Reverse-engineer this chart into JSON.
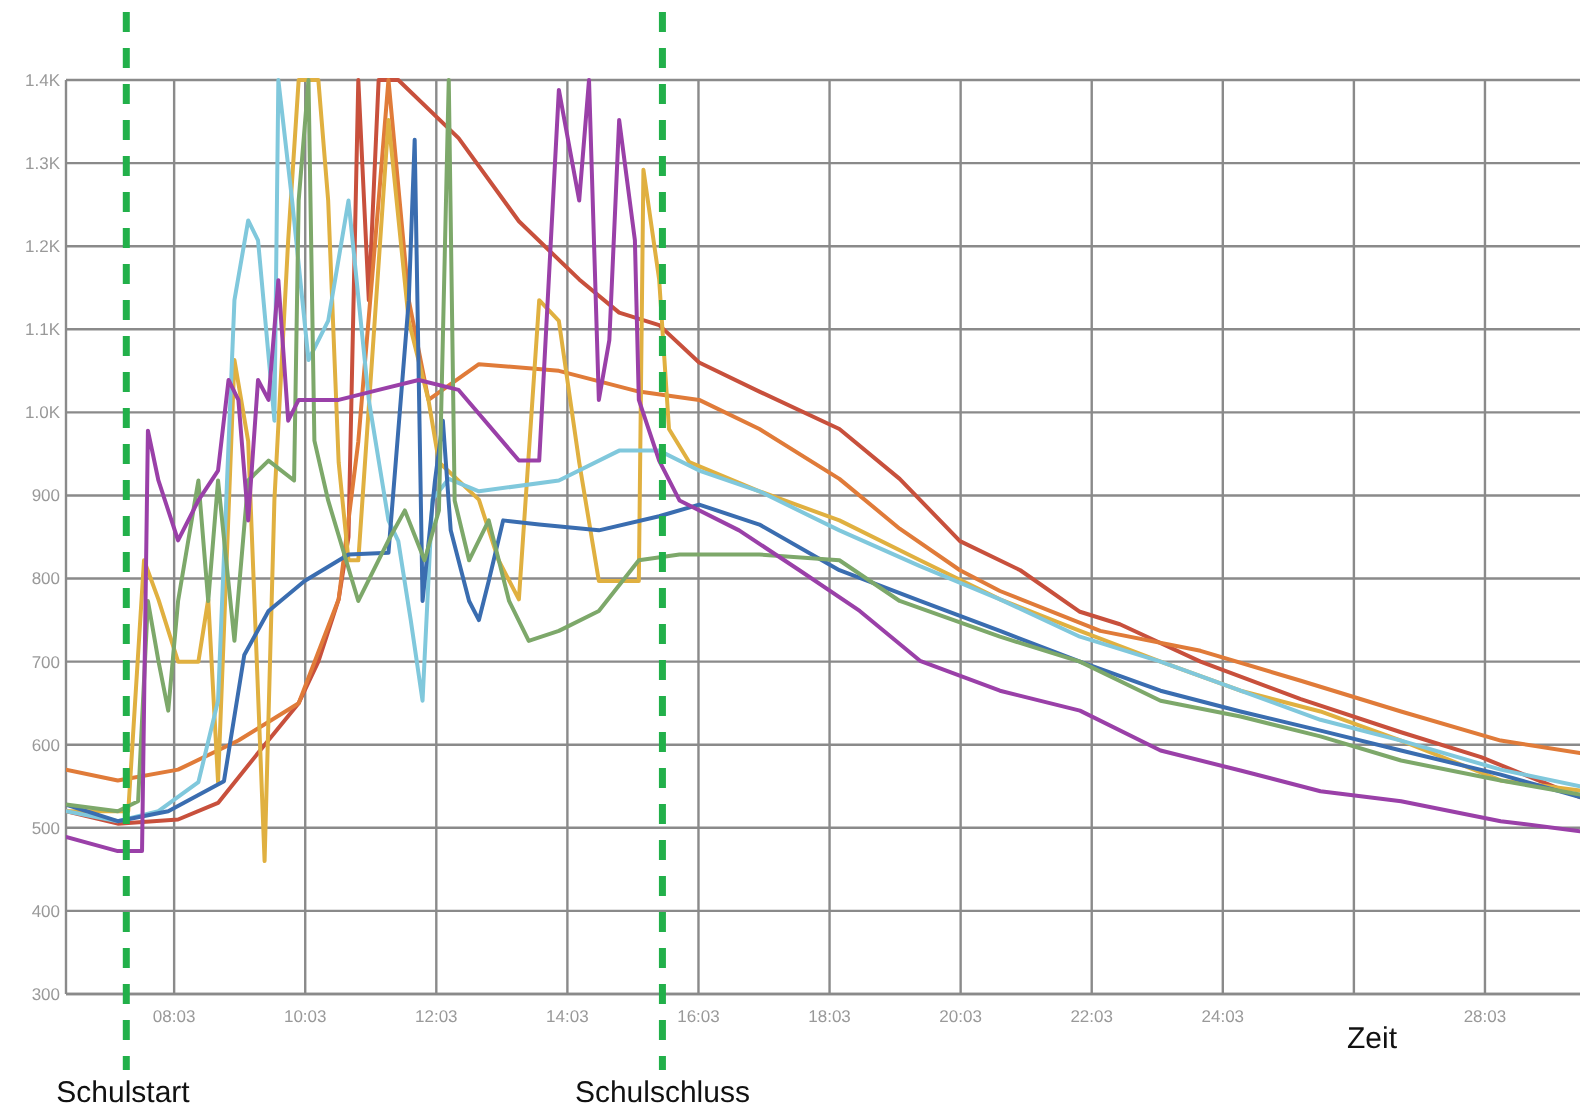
{
  "chart_data": {
    "type": "line",
    "xlabel": "Zeit",
    "xlim": [
      6.4,
      29.5
    ],
    "ylim": [
      300,
      1400
    ],
    "xticks": [
      {
        "value": 8.05,
        "label": "08:03"
      },
      {
        "value": 10.05,
        "label": "10:03"
      },
      {
        "value": 12.05,
        "label": "12:03"
      },
      {
        "value": 14.05,
        "label": "14:03"
      },
      {
        "value": 16.05,
        "label": "16:03"
      },
      {
        "value": 18.05,
        "label": "18:03"
      },
      {
        "value": 20.05,
        "label": "20:03"
      },
      {
        "value": 22.05,
        "label": "22:03"
      },
      {
        "value": 24.05,
        "label": "24:03"
      },
      {
        "value": 26.05,
        "label": null
      },
      {
        "value": 28.05,
        "label": "28:03"
      }
    ],
    "yticks": [
      300,
      400,
      500,
      600,
      700,
      800,
      900,
      {
        "value": 1000,
        "label": "1.0K"
      },
      {
        "value": 1100,
        "label": "1.1K"
      },
      {
        "value": 1200,
        "label": "1.2K"
      },
      {
        "value": 1300,
        "label": "1.3K"
      },
      {
        "value": 1400,
        "label": "1.4K"
      }
    ],
    "grid": true,
    "marker": "none",
    "line_style": "solid",
    "ref_lines": [
      {
        "axis": "x",
        "value": 7.32,
        "label": "Schulstart",
        "color": "#22b04a",
        "line_style": "dashed"
      },
      {
        "axis": "x",
        "value": 15.5,
        "label": "Schulschluss",
        "color": "#22b04a",
        "line_style": "dashed"
      }
    ],
    "series": [
      {
        "color": "#c8503c",
        "x": [
          6.4,
          7.19,
          8.11,
          8.72,
          9.33,
          9.95,
          10.25,
          10.56,
          10.71,
          10.86,
          11.02,
          11.17,
          11.47,
          12.39,
          13.31,
          14.23,
          14.84,
          15.45,
          16.06,
          16.98,
          18.2,
          19.12,
          20.04,
          20.96,
          21.87,
          22.48,
          23.71,
          25.24,
          26.77,
          27.99,
          29.5
        ],
        "values": [
          520,
          505,
          510,
          530,
          590,
          650,
          700,
          775,
          850,
          1400,
          1135,
          1400,
          1400,
          1330,
          1230,
          1160,
          1120,
          1105,
          1060,
          1025,
          980,
          920,
          845,
          810,
          760,
          745,
          700,
          655,
          615,
          585,
          537
        ]
      },
      {
        "color": "#e07b39",
        "x": [
          6.4,
          7.19,
          8.11,
          9.03,
          9.95,
          10.56,
          10.86,
          11.17,
          11.32,
          11.63,
          11.93,
          12.7,
          13.92,
          15.14,
          16.06,
          16.98,
          18.2,
          19.12,
          20.04,
          20.65,
          22.18,
          23.71,
          25.24,
          26.77,
          28.29,
          29.5
        ],
        "values": [
          570,
          557,
          570,
          605,
          650,
          775,
          965,
          1255,
          1400,
          1135,
          1015,
          1058,
          1050,
          1025,
          1015,
          980,
          920,
          860,
          810,
          785,
          737,
          713,
          677,
          640,
          605,
          590
        ]
      },
      {
        "color": "#e0b040",
        "x": [
          6.4,
          7.35,
          7.59,
          7.81,
          8.11,
          8.42,
          8.57,
          8.72,
          8.97,
          9.18,
          9.43,
          9.58,
          9.79,
          9.95,
          10.25,
          10.4,
          10.56,
          10.71,
          10.86,
          11.32,
          11.63,
          11.93,
          12.09,
          12.7,
          13.0,
          13.31,
          13.62,
          13.92,
          14.23,
          14.53,
          14.84,
          15.14,
          15.21,
          15.45,
          15.6,
          15.91,
          16.98,
          18.2,
          19.43,
          20.65,
          21.87,
          23.1,
          24.32,
          25.54,
          26.77,
          28.29,
          29.5
        ],
        "values": [
          520,
          520,
          822,
          775,
          700,
          700,
          775,
          555,
          1063,
          965,
          460,
          895,
          1207,
          1400,
          1400,
          1255,
          940,
          822,
          822,
          1352,
          1110,
          1015,
          940,
          895,
          822,
          775,
          1135,
          1110,
          940,
          797,
          797,
          797,
          1292,
          1160,
          980,
          940,
          905,
          870,
          822,
          775,
          737,
          700,
          665,
          640,
          605,
          557,
          545
        ]
      },
      {
        "color": "#80c8dc",
        "x": [
          6.4,
          7.19,
          7.81,
          8.42,
          8.72,
          8.97,
          9.18,
          9.33,
          9.58,
          9.64,
          9.85,
          10.1,
          10.4,
          10.71,
          11.02,
          11.32,
          11.47,
          11.66,
          11.84,
          11.99,
          12.24,
          12.7,
          13.92,
          14.84,
          15.45,
          16.06,
          16.98,
          18.2,
          19.43,
          20.65,
          21.87,
          23.1,
          24.32,
          25.54,
          26.77,
          28.29,
          29.5
        ],
        "values": [
          520,
          508,
          520,
          555,
          653,
          1135,
          1231,
          1207,
          990,
          1400,
          1255,
          1063,
          1110,
          1255,
          1015,
          870,
          845,
          750,
          653,
          895,
          920,
          905,
          918,
          954,
          954,
          930,
          905,
          858,
          815,
          775,
          730,
          700,
          665,
          630,
          605,
          570,
          550
        ]
      },
      {
        "color": "#3a6db0",
        "x": [
          6.4,
          7.19,
          7.96,
          8.81,
          9.12,
          9.49,
          10.04,
          10.71,
          11.32,
          11.63,
          11.72,
          11.84,
          12.03,
          12.15,
          12.27,
          12.55,
          12.7,
          12.85,
          13.07,
          13.62,
          14.53,
          15.45,
          16.06,
          16.98,
          18.2,
          19.43,
          20.65,
          21.87,
          23.1,
          24.32,
          25.54,
          26.77,
          28.29,
          29.5
        ],
        "values": [
          528,
          508,
          520,
          556,
          708,
          761,
          797,
          829,
          831,
          1135,
          1328,
          773,
          918,
          990,
          858,
          773,
          750,
          797,
          870,
          865,
          858,
          875,
          889,
          865,
          810,
          773,
          737,
          700,
          665,
          640,
          617,
          593,
          564,
          537
        ]
      },
      {
        "color": "#7da86a",
        "x": [
          6.4,
          7.19,
          7.5,
          7.65,
          7.81,
          7.96,
          8.11,
          8.42,
          8.57,
          8.72,
          8.97,
          9.18,
          9.49,
          9.88,
          9.95,
          10.1,
          10.19,
          10.4,
          10.86,
          11.32,
          11.57,
          11.87,
          12.09,
          12.24,
          12.33,
          12.55,
          12.85,
          13.16,
          13.46,
          13.92,
          14.53,
          15.14,
          15.76,
          16.98,
          18.2,
          19.12,
          20.65,
          21.87,
          23.1,
          24.32,
          25.54,
          26.77,
          28.29,
          29.5
        ],
        "values": [
          528,
          520,
          532,
          773,
          701,
          641,
          773,
          918,
          773,
          918,
          725,
          918,
          942,
          918,
          1255,
          1400,
          966,
          894,
          773,
          846,
          882,
          822,
          882,
          1400,
          894,
          822,
          870,
          773,
          725,
          737,
          761,
          822,
          829,
          829,
          822,
          773,
          730,
          700,
          653,
          634,
          610,
          581,
          557,
          540
        ]
      },
      {
        "color": "#9a40a8",
        "x": [
          6.4,
          7.19,
          7.56,
          7.65,
          7.81,
          8.11,
          8.42,
          8.72,
          8.88,
          9.03,
          9.18,
          9.33,
          9.49,
          9.64,
          9.79,
          9.95,
          10.56,
          11.17,
          11.78,
          12.39,
          13.31,
          13.62,
          13.92,
          14.23,
          14.38,
          14.53,
          14.69,
          14.84,
          15.08,
          15.14,
          15.45,
          15.76,
          16.67,
          17.59,
          18.51,
          19.43,
          20.65,
          21.87,
          23.1,
          24.32,
          25.54,
          26.77,
          28.29,
          29.5
        ],
        "values": [
          489,
          472,
          472,
          978,
          918,
          846,
          894,
          930,
          1039,
          1015,
          870,
          1039,
          1015,
          1159,
          990,
          1015,
          1015,
          1027,
          1039,
          1027,
          942,
          942,
          1388,
          1255,
          1400,
          1015,
          1087,
          1352,
          1207,
          1015,
          942,
          894,
          858,
          810,
          761,
          701,
          665,
          641,
          593,
          569,
          544,
          532,
          508,
          496
        ]
      }
    ]
  }
}
